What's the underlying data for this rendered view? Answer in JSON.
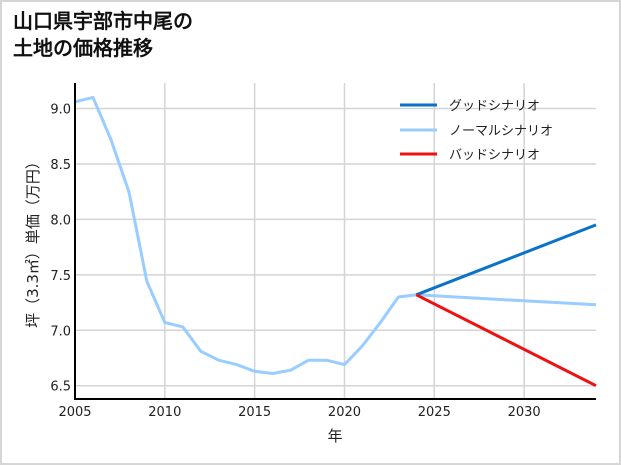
{
  "title": {
    "line1": "山口県宇部市中尾の",
    "line2": "土地の価格推移"
  },
  "chart_data": {
    "type": "line",
    "title": "山口県宇部市中尾の土地の価格推移",
    "xlabel": "年",
    "ylabel": "坪（3.3㎡）単価（万円）",
    "xlim": [
      2005,
      2034
    ],
    "ylim": [
      6.38,
      9.23
    ],
    "x_ticks": [
      "2005",
      "2010",
      "2015",
      "2020",
      "2025",
      "2030"
    ],
    "y_ticks": [
      "6.5",
      "7.0",
      "7.5",
      "8.0",
      "8.5",
      "9.0"
    ],
    "grid": true,
    "legend_position": "upper right",
    "series": [
      {
        "name": "グッドシナリオ",
        "color": "#0a72c8",
        "x": [
          2024,
          2034
        ],
        "values": [
          7.32,
          7.95
        ]
      },
      {
        "name": "ノーマルシナリオ",
        "color": "#99ccff",
        "x": [
          2005,
          2006,
          2007,
          2008,
          2009,
          2010,
          2011,
          2012,
          2013,
          2014,
          2015,
          2016,
          2017,
          2018,
          2019,
          2020,
          2021,
          2022,
          2023,
          2024,
          2034
        ],
        "values": [
          9.06,
          9.1,
          8.72,
          8.25,
          7.44,
          7.07,
          7.03,
          6.81,
          6.73,
          6.69,
          6.63,
          6.61,
          6.64,
          6.73,
          6.73,
          6.69,
          6.86,
          7.07,
          7.3,
          7.32,
          7.23
        ]
      },
      {
        "name": "バッドシナリオ",
        "color": "#ee1111",
        "x": [
          2024,
          2034
        ],
        "values": [
          7.32,
          6.5
        ]
      }
    ]
  }
}
